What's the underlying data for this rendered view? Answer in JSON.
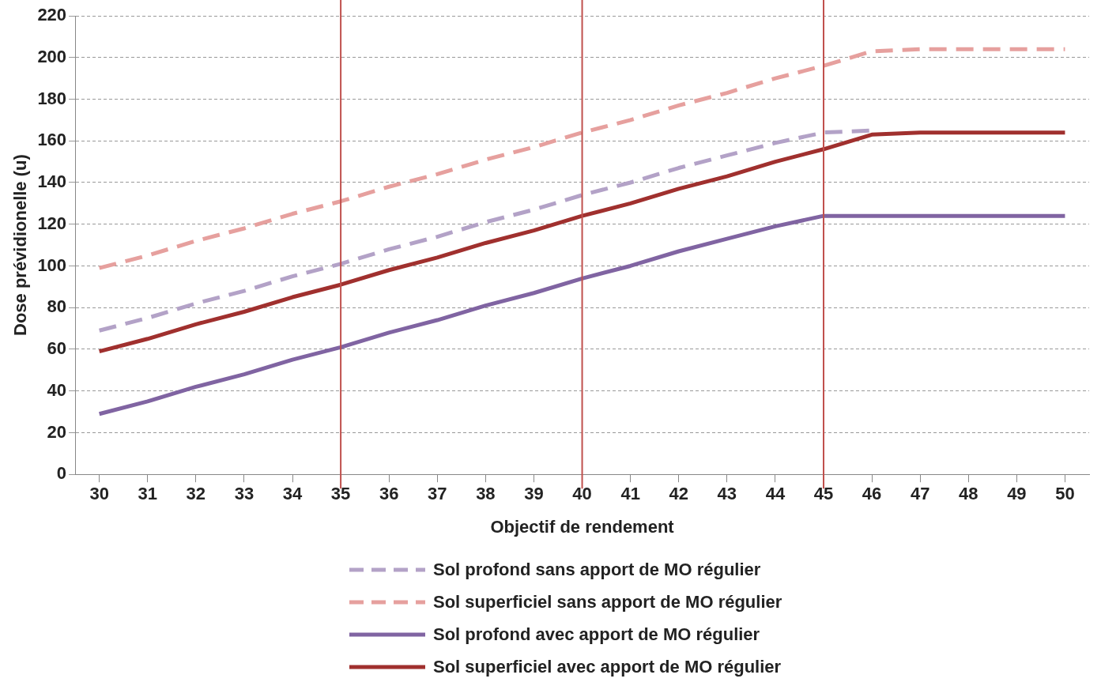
{
  "chart_data": {
    "type": "line",
    "xlabel": "Objectif de rendement",
    "ylabel": "Dose prévidionelle (u)",
    "categories": [
      "30",
      "31",
      "32",
      "33",
      "34",
      "35",
      "36",
      "37",
      "38",
      "39",
      "40",
      "41",
      "42",
      "43",
      "44",
      "45",
      "46",
      "47",
      "48",
      "49",
      "50"
    ],
    "ylim": [
      0,
      220
    ],
    "yticks": [
      0,
      20,
      40,
      60,
      80,
      100,
      120,
      140,
      160,
      180,
      200,
      220
    ],
    "grid": "y",
    "legend": "bottom",
    "marker": "none",
    "series": [
      {
        "name": "Sol profond sans apport de MO régulier",
        "color": "#b3a2c7",
        "line_style": "dashed",
        "values": [
          69,
          75,
          82,
          88,
          95,
          101,
          108,
          114,
          121,
          127,
          134,
          140,
          147,
          153,
          159,
          164,
          165,
          null,
          null,
          null,
          null
        ]
      },
      {
        "name": "Sol superficiel sans apport de MO régulier",
        "color": "#e6a09e",
        "line_style": "dashed",
        "values": [
          99,
          105,
          112,
          118,
          125,
          131,
          138,
          144,
          151,
          157,
          164,
          170,
          177,
          183,
          190,
          196,
          203,
          204,
          204,
          204,
          204
        ]
      },
      {
        "name": "Sol profond avec apport de MO régulier",
        "color": "#8064a2",
        "line_style": "solid",
        "values": [
          29,
          35,
          42,
          48,
          55,
          61,
          68,
          74,
          81,
          87,
          94,
          100,
          107,
          113,
          119,
          124,
          124,
          124,
          124,
          124,
          124
        ]
      },
      {
        "name": "Sol superficiel avec apport de MO régulier",
        "color": "#a0302e",
        "line_style": "solid",
        "values": [
          59,
          65,
          72,
          78,
          85,
          91,
          98,
          104,
          111,
          117,
          124,
          130,
          137,
          143,
          150,
          156,
          163,
          164,
          164,
          164,
          164
        ]
      }
    ],
    "ref_lines": [
      {
        "axis": "x",
        "value": "35",
        "color": "#c0504d",
        "line_style": "solid"
      },
      {
        "axis": "x",
        "value": "40",
        "color": "#c0504d",
        "line_style": "solid"
      },
      {
        "axis": "x",
        "value": "45",
        "color": "#c0504d",
        "line_style": "solid"
      }
    ]
  }
}
